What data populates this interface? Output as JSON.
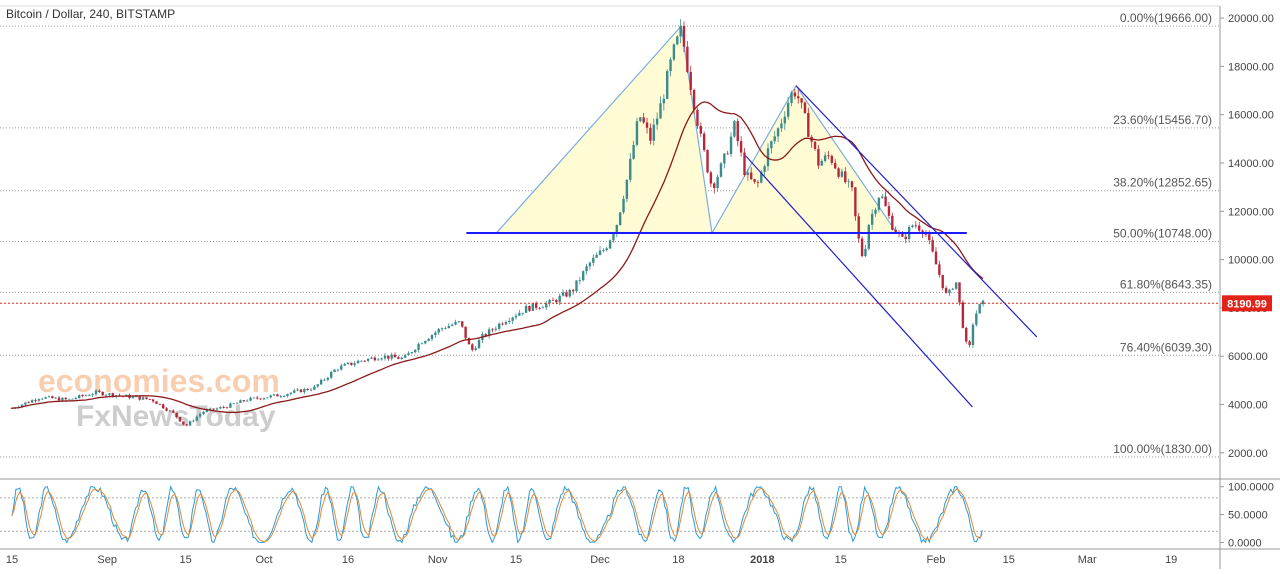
{
  "chart_data": {
    "type": "candlestick",
    "title": "Bitcoin / Dollar, 240, BITSTAMP",
    "watermark": {
      "line1": "economies.com",
      "line2": "FxNewsToday"
    },
    "main_pane": {
      "ylim": [
        1000,
        20500
      ],
      "y_ticks": [
        2000,
        4000,
        6000,
        8000,
        10000,
        12000,
        14000,
        16000,
        18000,
        20000
      ],
      "y_tick_labels": [
        "2000.00",
        "4000.00",
        "6000.00",
        "8000.00",
        "10000.00",
        "12000.00",
        "14000.00",
        "16000.00",
        "18000.00",
        "20000.00"
      ],
      "current_price": 8190.99,
      "current_price_label": "8190.99",
      "current_price_color": "#e2231a",
      "fibonacci_levels": [
        {
          "label": "0.00%(19666.00)",
          "value": 19666
        },
        {
          "label": "23.60%(15456.70)",
          "value": 15456.7
        },
        {
          "label": "38.20%(12852.65)",
          "value": 12852.65
        },
        {
          "label": "50.00%(10748.00)",
          "value": 10748
        },
        {
          "label": "61.80%(8643.35)",
          "value": 8643.35
        },
        {
          "label": "76.40%(6039.30)",
          "value": 6039.3
        },
        {
          "label": "100.00%(1830.00)",
          "value": 1830
        }
      ],
      "neckline": {
        "t0": 86.5,
        "t1": 158,
        "value": 11100,
        "color": "#1a1aff"
      },
      "channel": {
        "upper": [
          {
            "t": 140,
            "v": 17200
          },
          {
            "t": 183,
            "v": 6800
          }
        ],
        "lower": [
          {
            "t": 131,
            "v": 14300
          },
          {
            "t": 171.5,
            "v": 3900
          }
        ],
        "color": "#2323cc"
      },
      "pattern_points": [
        {
          "t": 86.5,
          "v": 11100
        },
        {
          "t": 119.5,
          "v": 19666
        },
        {
          "t": 125,
          "v": 11100
        },
        {
          "t": 140,
          "v": 17200
        },
        {
          "t": 158,
          "v": 11100
        }
      ],
      "pattern_fill": "#fffbd5",
      "candle_up_color": "#3a8c8c",
      "candle_down_color": "#b5283a",
      "ma_color": "#8b1a1a",
      "price_path": [
        {
          "t": 0,
          "v": 3850
        },
        {
          "t": 5,
          "v": 4300
        },
        {
          "t": 10,
          "v": 4200
        },
        {
          "t": 15,
          "v": 4500
        },
        {
          "t": 20,
          "v": 4350
        },
        {
          "t": 25,
          "v": 4200
        },
        {
          "t": 29,
          "v": 3600
        },
        {
          "t": 31,
          "v": 3100
        },
        {
          "t": 34,
          "v": 3700
        },
        {
          "t": 38,
          "v": 3900
        },
        {
          "t": 42,
          "v": 4200
        },
        {
          "t": 48,
          "v": 4400
        },
        {
          "t": 54,
          "v": 4700
        },
        {
          "t": 58,
          "v": 5500
        },
        {
          "t": 62,
          "v": 5800
        },
        {
          "t": 66,
          "v": 6000
        },
        {
          "t": 70,
          "v": 5900
        },
        {
          "t": 73,
          "v": 6600
        },
        {
          "t": 77,
          "v": 7200
        },
        {
          "t": 80,
          "v": 7400
        },
        {
          "t": 82,
          "v": 6200
        },
        {
          "t": 84,
          "v": 6800
        },
        {
          "t": 88,
          "v": 7500
        },
        {
          "t": 92,
          "v": 8000
        },
        {
          "t": 96,
          "v": 8200
        },
        {
          "t": 100,
          "v": 8700
        },
        {
          "t": 103,
          "v": 9800
        },
        {
          "t": 106,
          "v": 10500
        },
        {
          "t": 108,
          "v": 11500
        },
        {
          "t": 110,
          "v": 13500
        },
        {
          "t": 112,
          "v": 16000
        },
        {
          "t": 114,
          "v": 15000
        },
        {
          "t": 116,
          "v": 16500
        },
        {
          "t": 118,
          "v": 18500
        },
        {
          "t": 119.5,
          "v": 19500
        },
        {
          "t": 121,
          "v": 17500
        },
        {
          "t": 123,
          "v": 15000
        },
        {
          "t": 125,
          "v": 13000
        },
        {
          "t": 127,
          "v": 14000
        },
        {
          "t": 129,
          "v": 15500
        },
        {
          "t": 131,
          "v": 13500
        },
        {
          "t": 133,
          "v": 13000
        },
        {
          "t": 135,
          "v": 14500
        },
        {
          "t": 137,
          "v": 15500
        },
        {
          "t": 139,
          "v": 16800
        },
        {
          "t": 140,
          "v": 17000
        },
        {
          "t": 142,
          "v": 15500
        },
        {
          "t": 144,
          "v": 14000
        },
        {
          "t": 146,
          "v": 14300
        },
        {
          "t": 148,
          "v": 13500
        },
        {
          "t": 150,
          "v": 12800
        },
        {
          "t": 151,
          "v": 11000
        },
        {
          "t": 152,
          "v": 10000
        },
        {
          "t": 153,
          "v": 11500
        },
        {
          "t": 155,
          "v": 12800
        },
        {
          "t": 157,
          "v": 11500
        },
        {
          "t": 159,
          "v": 10800
        },
        {
          "t": 161,
          "v": 11500
        },
        {
          "t": 163,
          "v": 11200
        },
        {
          "t": 165,
          "v": 9800
        },
        {
          "t": 167,
          "v": 8400
        },
        {
          "t": 168.5,
          "v": 9200
        },
        {
          "t": 170,
          "v": 7000
        },
        {
          "t": 170.8,
          "v": 6000
        },
        {
          "t": 171.5,
          "v": 7300
        },
        {
          "t": 172.5,
          "v": 8000
        },
        {
          "t": 173.5,
          "v": 8190.99
        }
      ]
    },
    "oscillator_pane": {
      "ylim": [
        -10,
        112
      ],
      "y_ticks": [
        0,
        50,
        100
      ],
      "y_tick_labels": [
        "0.0000",
        "50.0000",
        "100.0000"
      ],
      "levels": [
        20,
        80
      ],
      "k_color": "#2a9ad8",
      "d_color": "#e08b3a"
    },
    "time_axis": {
      "tick_labels": [
        {
          "t": 0,
          "label": "15",
          "bold": false
        },
        {
          "t": 17,
          "label": "Sep",
          "bold": false
        },
        {
          "t": 31,
          "label": "15",
          "bold": false
        },
        {
          "t": 45,
          "label": "Oct",
          "bold": false
        },
        {
          "t": 60,
          "label": "16",
          "bold": false
        },
        {
          "t": 76,
          "label": "Nov",
          "bold": false
        },
        {
          "t": 90,
          "label": "15",
          "bold": false
        },
        {
          "t": 105,
          "label": "Dec",
          "bold": false
        },
        {
          "t": 119,
          "label": "18",
          "bold": false
        },
        {
          "t": 134,
          "label": "2018",
          "bold": true
        },
        {
          "t": 148,
          "label": "15",
          "bold": false
        },
        {
          "t": 165,
          "label": "Feb",
          "bold": false
        },
        {
          "t": 178,
          "label": "15",
          "bold": false
        },
        {
          "t": 192,
          "label": "Mar",
          "bold": false
        },
        {
          "t": 207,
          "label": "19",
          "bold": false
        }
      ]
    }
  }
}
